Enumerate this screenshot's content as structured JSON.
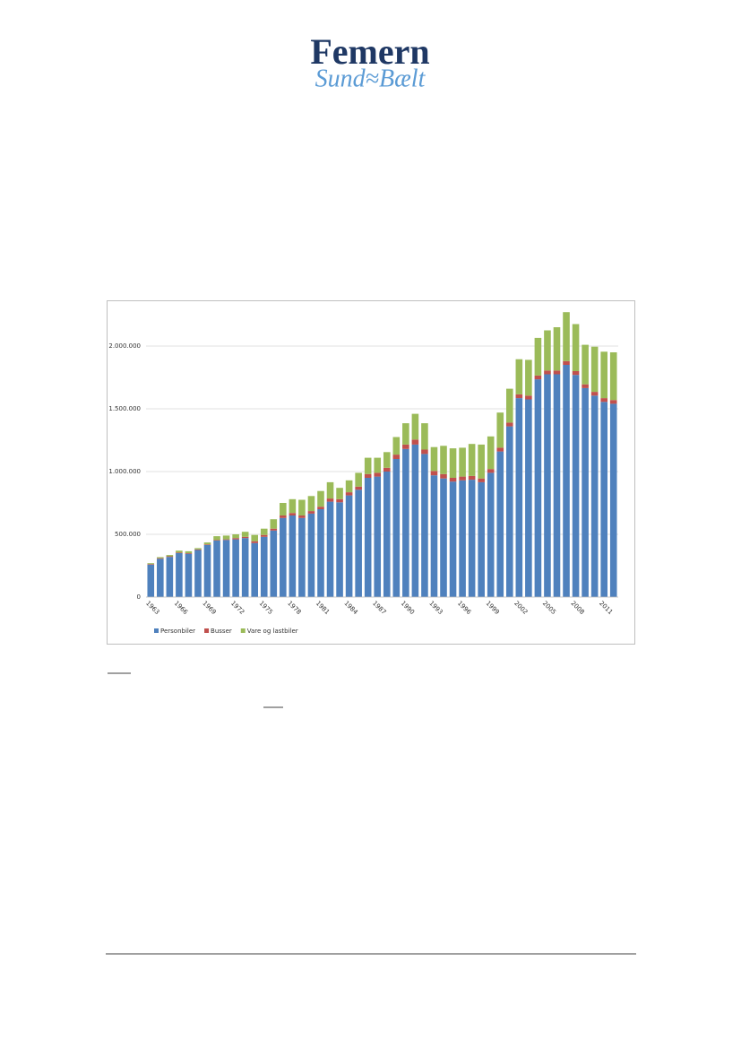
{
  "logo": {
    "top": "Femern",
    "bottom": "Sund≈Bælt"
  },
  "chart_data": {
    "type": "bar",
    "stacked": true,
    "categories": [
      "1963",
      null,
      null,
      "1966",
      null,
      null,
      "1969",
      null,
      null,
      "1972",
      null,
      null,
      "1975",
      null,
      null,
      "1978",
      null,
      null,
      "1981",
      null,
      null,
      "1984",
      null,
      null,
      "1987",
      null,
      null,
      "1990",
      null,
      null,
      "1993",
      null,
      null,
      "1996",
      null,
      null,
      "1999",
      null,
      null,
      "2002",
      null,
      null,
      "2005",
      null,
      null,
      "2008",
      null,
      null,
      "2011",
      null
    ],
    "series": [
      {
        "name": "Personbiler",
        "color": "#4f81bd",
        "values": [
          258000,
          305000,
          320000,
          350000,
          345000,
          375000,
          415000,
          450000,
          455000,
          460000,
          470000,
          430000,
          480000,
          530000,
          630000,
          650000,
          630000,
          665000,
          700000,
          760000,
          755000,
          810000,
          855000,
          950000,
          960000,
          1000000,
          1100000,
          1180000,
          1215000,
          1140000,
          970000,
          945000,
          920000,
          930000,
          935000,
          915000,
          990000,
          1160000,
          1360000,
          1585000,
          1575000,
          1735000,
          1775000,
          1775000,
          1850000,
          1770000,
          1665000,
          1605000,
          1555000,
          1540000
        ]
      },
      {
        "name": "Busser",
        "color": "#c0504d",
        "values": [
          5000,
          5000,
          5000,
          5000,
          5000,
          5000,
          5000,
          5000,
          5000,
          10000,
          10000,
          15000,
          15000,
          15000,
          20000,
          20000,
          20000,
          20000,
          20000,
          25000,
          25000,
          25000,
          25000,
          30000,
          30000,
          30000,
          35000,
          35000,
          40000,
          35000,
          35000,
          35000,
          30000,
          30000,
          30000,
          30000,
          30000,
          30000,
          30000,
          30000,
          30000,
          30000,
          30000,
          30000,
          30000,
          30000,
          30000,
          30000,
          30000,
          30000
        ]
      },
      {
        "name": "Vare og lastbiler",
        "color": "#9bbb59",
        "values": [
          7000,
          8000,
          10000,
          15000,
          15000,
          10000,
          15000,
          30000,
          30000,
          30000,
          40000,
          50000,
          50000,
          75000,
          100000,
          110000,
          125000,
          120000,
          125000,
          130000,
          90000,
          95000,
          110000,
          130000,
          120000,
          125000,
          140000,
          170000,
          205000,
          210000,
          190000,
          225000,
          235000,
          230000,
          255000,
          270000,
          260000,
          280000,
          270000,
          280000,
          285000,
          300000,
          320000,
          345000,
          390000,
          375000,
          315000,
          360000,
          370000,
          380000
        ]
      }
    ],
    "ylim": [
      0,
      2300000
    ],
    "yticks": [
      0,
      {
        "value": 500000,
        "label": "500.000"
      },
      {
        "value": 1000000,
        "label": "1.000.000"
      },
      {
        "value": 1500000,
        "label": "1.500.000"
      },
      {
        "value": 2000000,
        "label": "2.000.000"
      }
    ],
    "grid": true
  }
}
